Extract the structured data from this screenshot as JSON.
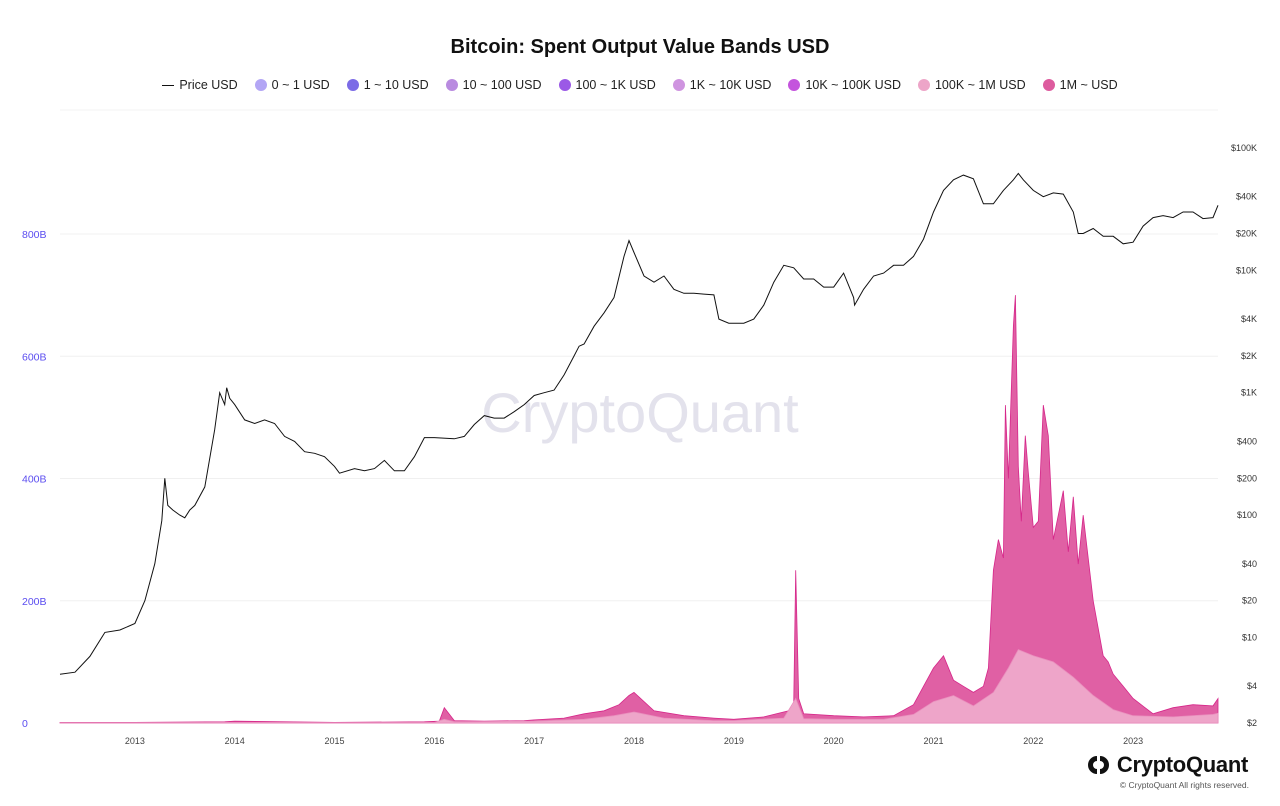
{
  "chart_data": {
    "type": "area",
    "title": "Bitcoin: Spent Output Value Bands USD",
    "legend": [
      {
        "name": "Price USD",
        "color": "#111111",
        "style": "line"
      },
      {
        "name": "0 ~ 1 USD",
        "color": "#b3a6f5",
        "style": "dot"
      },
      {
        "name": "1 ~ 10 USD",
        "color": "#7b6be6",
        "style": "dot"
      },
      {
        "name": "10 ~ 100 USD",
        "color": "#b98be0",
        "style": "dot"
      },
      {
        "name": "100 ~ 1K USD",
        "color": "#9b59e6",
        "style": "dot"
      },
      {
        "name": "1K ~ 10K USD",
        "color": "#cf94e0",
        "style": "dot"
      },
      {
        "name": "10K ~ 100K USD",
        "color": "#c454dd",
        "style": "dot"
      },
      {
        "name": "100K ~ 1M USD",
        "color": "#eda5c8",
        "style": "dot"
      },
      {
        "name": "1M ~ USD",
        "color": "#dd5b9e",
        "style": "dot"
      }
    ],
    "legend_position": "top-center",
    "grid": true,
    "x_ticks": [
      "2013",
      "2014",
      "2015",
      "2016",
      "2017",
      "2018",
      "2019",
      "2020",
      "2021",
      "2022",
      "2023"
    ],
    "x_range": [
      2012.25,
      2023.85
    ],
    "y_left": {
      "ticks": [
        "0",
        "200B",
        "400B",
        "600B",
        "800B"
      ],
      "tick_values": [
        0,
        200,
        400,
        600,
        800
      ],
      "range": [
        0,
        800
      ],
      "unit": "B USD"
    },
    "y_right": {
      "scale": "log",
      "ticks": [
        "$2",
        "$4",
        "$10",
        "$20",
        "$40",
        "$100",
        "$200",
        "$400",
        "$1K",
        "$2K",
        "$4K",
        "$10K",
        "$20K",
        "$40K",
        "$100K"
      ],
      "tick_values": [
        2,
        4,
        10,
        20,
        40,
        100,
        200,
        400,
        1000,
        2000,
        4000,
        10000,
        20000,
        40000,
        100000
      ]
    },
    "series": [
      {
        "name": "Price USD",
        "axis": "right",
        "x": [
          2012.25,
          2012.4,
          2012.55,
          2012.7,
          2012.85,
          2013.0,
          2013.1,
          2013.2,
          2013.27,
          2013.3,
          2013.33,
          2013.38,
          2013.45,
          2013.5,
          2013.55,
          2013.6,
          2013.7,
          2013.8,
          2013.85,
          2013.9,
          2013.92,
          2013.95,
          2014.0,
          2014.1,
          2014.2,
          2014.3,
          2014.4,
          2014.5,
          2014.6,
          2014.7,
          2014.8,
          2014.9,
          2015.0,
          2015.05,
          2015.2,
          2015.3,
          2015.4,
          2015.5,
          2015.6,
          2015.7,
          2015.8,
          2015.9,
          2016.0,
          2016.2,
          2016.3,
          2016.4,
          2016.5,
          2016.6,
          2016.7,
          2016.8,
          2016.9,
          2017.0,
          2017.1,
          2017.2,
          2017.3,
          2017.4,
          2017.45,
          2017.5,
          2017.6,
          2017.7,
          2017.8,
          2017.9,
          2017.95,
          2018.0,
          2018.1,
          2018.2,
          2018.3,
          2018.4,
          2018.5,
          2018.6,
          2018.7,
          2018.8,
          2018.85,
          2018.95,
          2019.0,
          2019.1,
          2019.2,
          2019.3,
          2019.4,
          2019.5,
          2019.6,
          2019.7,
          2019.8,
          2019.9,
          2020.0,
          2020.1,
          2020.2,
          2020.21,
          2020.3,
          2020.4,
          2020.5,
          2020.6,
          2020.7,
          2020.8,
          2020.9,
          2021.0,
          2021.1,
          2021.2,
          2021.3,
          2021.4,
          2021.5,
          2021.6,
          2021.7,
          2021.8,
          2021.85,
          2021.9,
          2022.0,
          2022.1,
          2022.2,
          2022.3,
          2022.4,
          2022.45,
          2022.5,
          2022.6,
          2022.7,
          2022.8,
          2022.9,
          2023.0,
          2023.1,
          2023.2,
          2023.3,
          2023.4,
          2023.5,
          2023.6,
          2023.7,
          2023.8,
          2023.85
        ],
        "values": [
          5,
          5.2,
          7,
          11,
          11.5,
          13,
          20,
          40,
          90,
          200,
          120,
          110,
          100,
          95,
          110,
          120,
          170,
          500,
          1000,
          800,
          1100,
          900,
          800,
          600,
          560,
          600,
          560,
          440,
          400,
          330,
          320,
          300,
          250,
          220,
          240,
          230,
          240,
          280,
          230,
          230,
          300,
          430,
          430,
          420,
          440,
          550,
          650,
          620,
          620,
          700,
          800,
          950,
          1000,
          1050,
          1400,
          2000,
          2400,
          2500,
          3500,
          4500,
          6000,
          13000,
          17500,
          14000,
          9000,
          8000,
          9000,
          7000,
          6500,
          6500,
          6400,
          6300,
          4000,
          3700,
          3700,
          3700,
          4000,
          5200,
          8000,
          11000,
          10500,
          8500,
          8500,
          7300,
          7300,
          9500,
          6000,
          5200,
          7000,
          9000,
          9500,
          11000,
          11000,
          13000,
          18000,
          30000,
          45000,
          55000,
          60000,
          56000,
          35000,
          35000,
          45000,
          55000,
          62000,
          55000,
          45000,
          40000,
          43000,
          42000,
          30000,
          20000,
          20000,
          22000,
          19000,
          19000,
          16500,
          17000,
          23000,
          27000,
          28000,
          27000,
          30000,
          30000,
          26500,
          27000,
          34000
        ]
      },
      {
        "name": "1M ~ USD",
        "axis": "left",
        "x": [
          2012.25,
          2013.0,
          2013.9,
          2014.0,
          2015.0,
          2015.9,
          2016.05,
          2016.1,
          2016.2,
          2016.5,
          2016.9,
          2017.0,
          2017.3,
          2017.5,
          2017.7,
          2017.85,
          2017.95,
          2018.0,
          2018.2,
          2018.5,
          2018.8,
          2019.0,
          2019.3,
          2019.55,
          2019.6,
          2019.62,
          2019.65,
          2019.7,
          2020.0,
          2020.3,
          2020.6,
          2020.8,
          2020.9,
          2021.0,
          2021.05,
          2021.1,
          2021.2,
          2021.3,
          2021.4,
          2021.5,
          2021.55,
          2021.6,
          2021.65,
          2021.7,
          2021.72,
          2021.75,
          2021.8,
          2021.82,
          2021.85,
          2021.88,
          2021.92,
          2021.95,
          2022.0,
          2022.05,
          2022.1,
          2022.15,
          2022.2,
          2022.3,
          2022.35,
          2022.4,
          2022.45,
          2022.5,
          2022.6,
          2022.7,
          2022.75,
          2022.8,
          2022.9,
          2023.0,
          2023.2,
          2023.4,
          2023.6,
          2023.8,
          2023.85
        ],
        "values": [
          1,
          1,
          2,
          3,
          1,
          2,
          3,
          25,
          4,
          3,
          4,
          5,
          8,
          15,
          20,
          30,
          45,
          50,
          20,
          12,
          8,
          6,
          10,
          20,
          30,
          250,
          40,
          15,
          12,
          10,
          12,
          30,
          60,
          90,
          100,
          110,
          70,
          60,
          50,
          60,
          90,
          250,
          300,
          270,
          520,
          400,
          650,
          700,
          420,
          330,
          470,
          410,
          320,
          330,
          520,
          470,
          300,
          380,
          280,
          370,
          260,
          340,
          200,
          110,
          100,
          80,
          60,
          40,
          15,
          25,
          30,
          28,
          40
        ]
      },
      {
        "name": "100K ~ 1M USD",
        "axis": "left",
        "x": [
          2012.25,
          2013.0,
          2014.0,
          2015.0,
          2016.0,
          2016.1,
          2016.2,
          2017.0,
          2017.5,
          2017.8,
          2018.0,
          2018.3,
          2018.8,
          2019.0,
          2019.5,
          2019.62,
          2019.7,
          2020.0,
          2020.5,
          2020.8,
          2021.0,
          2021.2,
          2021.4,
          2021.6,
          2021.75,
          2021.85,
          2022.0,
          2022.2,
          2022.4,
          2022.6,
          2022.8,
          2023.0,
          2023.4,
          2023.8,
          2023.85
        ],
        "values": [
          0.5,
          0.5,
          1,
          0.5,
          1,
          6,
          2,
          3,
          6,
          12,
          18,
          8,
          4,
          4,
          8,
          40,
          7,
          6,
          6,
          14,
          35,
          45,
          28,
          50,
          90,
          120,
          110,
          100,
          75,
          45,
          22,
          12,
          10,
          14,
          16
        ]
      }
    ]
  },
  "watermark": "CryptoQuant",
  "brand": {
    "name": "CryptoQuant",
    "copyright": "© CryptoQuant All rights reserved."
  }
}
